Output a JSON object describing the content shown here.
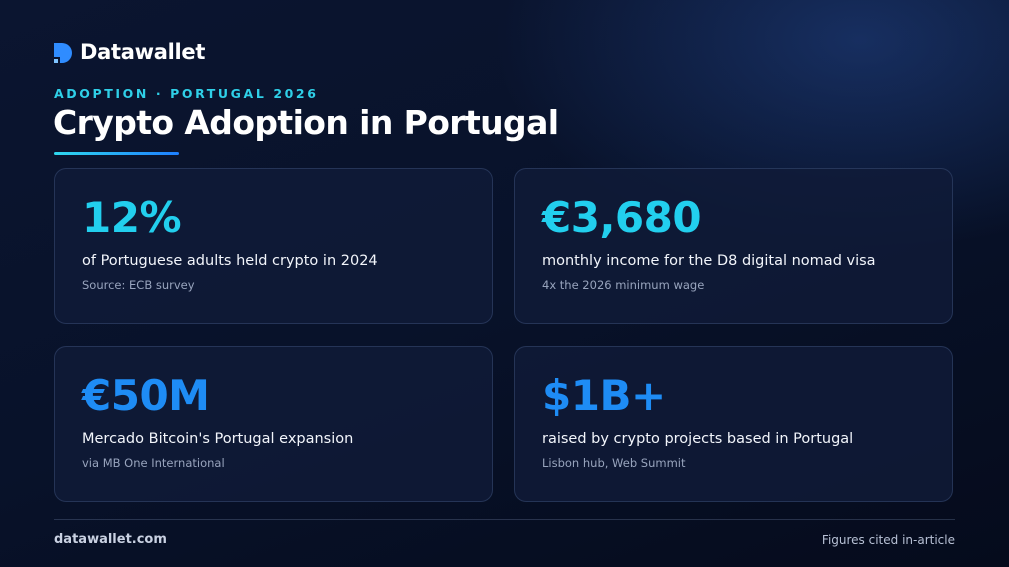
{
  "header": {
    "brand": "Datawallet",
    "eyebrow": "ADOPTION · PORTUGAL 2026",
    "title": "Crypto Adoption in Portugal"
  },
  "cards": [
    {
      "stat": "12%",
      "description": "of Portuguese adults held crypto in 2024",
      "source": "Source: ECB survey"
    },
    {
      "stat": "€3,680",
      "description": "monthly income for the D8 digital nomad visa",
      "source": "4x the 2026 minimum wage"
    },
    {
      "stat": "€50M",
      "description": "Mercado Bitcoin's Portugal expansion",
      "source": "via MB One International"
    },
    {
      "stat": "$1B+",
      "description": "raised by crypto projects based in Portugal",
      "source": "Lisbon hub, Web Summit"
    }
  ],
  "footer": {
    "site": "datawallet.com",
    "note": "Figures cited in-article"
  }
}
